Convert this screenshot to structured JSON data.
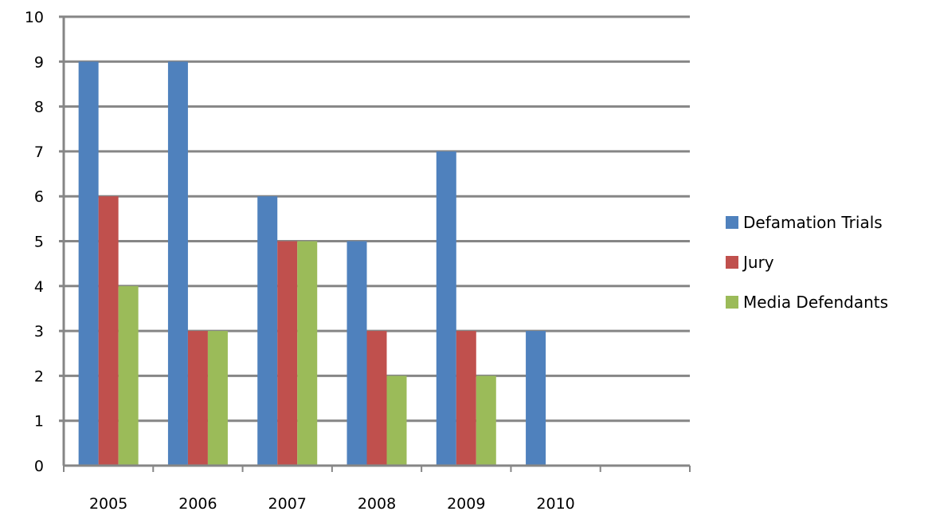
{
  "chart_data": {
    "type": "bar",
    "title": "",
    "xlabel": "",
    "ylabel": "",
    "categories": [
      "2005",
      "2006",
      "2007",
      "2008",
      "2009",
      "2010",
      ""
    ],
    "series": [
      {
        "name": "Defamation Trials",
        "color": "#4f81bd",
        "values": [
          9,
          9,
          6,
          5,
          7,
          3,
          null
        ]
      },
      {
        "name": "Jury",
        "color": "#c0504d",
        "values": [
          6,
          3,
          5,
          3,
          3,
          null,
          null
        ]
      },
      {
        "name": "Media Defendants",
        "color": "#9bbb59",
        "values": [
          4,
          3,
          5,
          2,
          2,
          null,
          null
        ]
      }
    ],
    "ylim": [
      0,
      10
    ],
    "yticks": [
      0,
      1,
      2,
      3,
      4,
      5,
      6,
      7,
      8,
      9,
      10
    ],
    "grid": true,
    "legend_position": "right"
  },
  "legend": {
    "items": [
      {
        "label": "Defamation Trials",
        "color": "#4f81bd"
      },
      {
        "label": "Jury",
        "color": "#c0504d"
      },
      {
        "label": "Media Defendants",
        "color": "#9bbb59"
      }
    ]
  }
}
